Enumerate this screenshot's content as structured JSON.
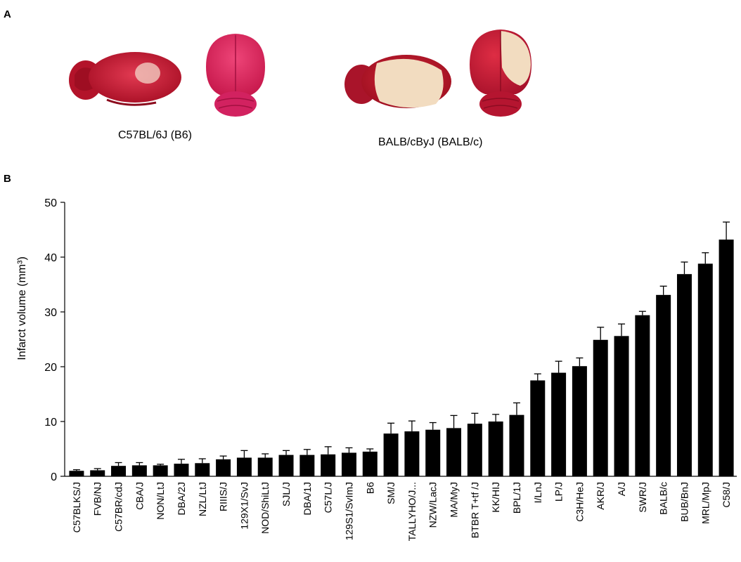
{
  "panel_a": {
    "label": "A",
    "left_caption": "C57BL/6J (B6)",
    "right_caption": "BALB/cByJ (BALB/c)"
  },
  "panel_b": {
    "label": "B"
  },
  "colors": {
    "bar": "#000000",
    "brain_red": "#c4182e",
    "brain_pink": "#dd2a62",
    "infarct": "#f1dcc0"
  },
  "chart_data": {
    "type": "bar",
    "ylabel": "Infarct volume (mm³)",
    "ylim": [
      0,
      50
    ],
    "yticks": [
      0,
      10,
      20,
      30,
      40,
      50
    ],
    "grid": false,
    "categories": [
      "C57BLKS/J",
      "FVB/NJ",
      "C57BR/cdJ",
      "CBA/J",
      "NON/LtJ",
      "DBA/2J",
      "NZL/LtJ",
      "RIIIS/J",
      "129X1/SvJ",
      "NOD/ShiLtJ",
      "SJL/J",
      "DBA/1J",
      "C57L/J",
      "129S1/SvImJ",
      "B6",
      "SM/J",
      "TALLYHO/J...",
      "NZW/LacJ",
      "MA/MyJ",
      "BTBR T+tf /J",
      "KK/HIJ",
      "BPL/1J",
      "I/LnJ",
      "LP/J",
      "C3H/HeJ",
      "AKR/J",
      "A/J",
      "SWR/J",
      "BALB/c",
      "BUB/BnJ",
      "MRL/MpJ",
      "C58/J"
    ],
    "values": [
      1.0,
      1.1,
      1.9,
      2.0,
      2.0,
      2.3,
      2.4,
      3.1,
      3.4,
      3.4,
      3.9,
      3.9,
      4.0,
      4.3,
      4.5,
      7.8,
      8.2,
      8.5,
      8.8,
      9.6,
      10.0,
      11.2,
      17.5,
      18.9,
      20.1,
      24.9,
      25.6,
      29.4,
      33.1,
      36.9,
      38.8,
      43.2
    ],
    "errors": [
      0.2,
      0.3,
      0.6,
      0.5,
      0.2,
      0.8,
      0.8,
      0.6,
      1.3,
      0.7,
      0.8,
      1.0,
      1.4,
      0.9,
      0.5,
      1.9,
      1.9,
      1.3,
      2.3,
      1.9,
      1.3,
      2.2,
      1.2,
      2.1,
      1.5,
      2.3,
      2.2,
      0.7,
      1.6,
      2.2,
      2.0,
      3.2
    ]
  }
}
